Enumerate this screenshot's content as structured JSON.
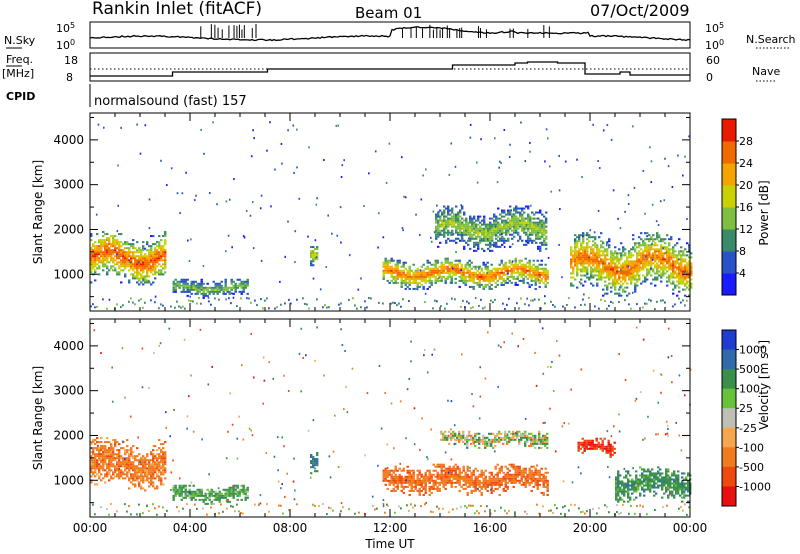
{
  "header": {
    "station": "Rankin Inlet (fitACF)",
    "beam": "Beam 01",
    "date": "07/Oct/2009"
  },
  "strip_panels": {
    "nsky": {
      "left_label": "N.Sky",
      "right_label": "N.Search",
      "left_ticks": [
        {
          "base": "10",
          "exp": "5"
        },
        {
          "base": "10",
          "exp": "0"
        }
      ],
      "right_ticks": [
        {
          "base": "10",
          "exp": "5"
        },
        {
          "base": "10",
          "exp": "0"
        }
      ]
    },
    "freq": {
      "left_label": "Freq.",
      "left_unit": "[MHz]",
      "left_ticks": [
        "18",
        "8"
      ],
      "right_label": "Nave",
      "right_ticks": [
        "60",
        "0"
      ]
    },
    "cpid": {
      "label": "CPID",
      "program": "normalsound (fast) 157"
    }
  },
  "colors": {
    "power_scale": [
      "#1a1aff",
      "#2a52c8",
      "#3b8a6a",
      "#7fbf3f",
      "#c9d200",
      "#f5a300",
      "#f06a00",
      "#e81a00"
    ],
    "velocity_scale": [
      "#1e3cd0",
      "#2f6ba8",
      "#3a8f4a",
      "#66c23a",
      "#bfbfb6",
      "#f4a74e",
      "#f07a1e",
      "#ee4a10",
      "#e81010"
    ],
    "ground_scatter": "#b8b4ac"
  },
  "chart_data": [
    {
      "type": "heatmap",
      "name": "power",
      "ylabel": "Slant Range [km]",
      "xlabel": "",
      "y_ticks": [
        "1000",
        "2000",
        "3000",
        "4000"
      ],
      "x_ticks": [
        "00:00",
        "04:00",
        "08:00",
        "12:00",
        "16:00",
        "20:00",
        "00:00"
      ],
      "ylim": [
        180,
        4600
      ],
      "xlim_hours": [
        0,
        24
      ],
      "colorbar": {
        "label": "Power [dB]",
        "ticks": [
          "4",
          "8",
          "12",
          "16",
          "20",
          "24",
          "28"
        ],
        "range": [
          0,
          32
        ]
      },
      "echo_regions": [
        {
          "t": [
            0.0,
            3.0
          ],
          "range_km": [
            750,
            1950
          ],
          "peak_db": 28
        },
        {
          "t": [
            3.3,
            6.3
          ],
          "range_km": [
            450,
            900
          ],
          "peak_db": 14
        },
        {
          "t": [
            8.8,
            9.1
          ],
          "range_km": [
            1000,
            1650
          ],
          "peak_db": 18
        },
        {
          "t": [
            11.7,
            18.3
          ],
          "range_km": [
            650,
            1350
          ],
          "peak_db": 26
        },
        {
          "t": [
            13.8,
            18.2
          ],
          "range_km": [
            1500,
            2500
          ],
          "peak_db": 16
        },
        {
          "t": [
            19.2,
            24.0
          ],
          "range_km": [
            500,
            1900
          ],
          "peak_db": 26
        }
      ]
    },
    {
      "type": "heatmap",
      "name": "velocity",
      "ylabel": "Slant Range [km]",
      "xlabel": "Time UT",
      "y_ticks": [
        "1000",
        "2000",
        "3000",
        "4000"
      ],
      "x_ticks": [
        "00:00",
        "04:00",
        "08:00",
        "12:00",
        "16:00",
        "20:00",
        "00:00"
      ],
      "ylim": [
        180,
        4600
      ],
      "xlim_hours": [
        0,
        24
      ],
      "colorbar": {
        "label": "Velocity",
        "unit_base": "[m s",
        "unit_exp": "-1",
        "unit_close": "]",
        "ticks": [
          "1000",
          "500",
          "100",
          "25",
          "-25",
          "-100",
          "-500",
          "-1000"
        ]
      },
      "echo_regions": [
        {
          "t": [
            0.0,
            3.0
          ],
          "range_km": [
            750,
            1950
          ],
          "vel_ms": -200
        },
        {
          "t": [
            3.3,
            6.3
          ],
          "range_km": [
            450,
            900
          ],
          "vel_ms": 150
        },
        {
          "t": [
            8.8,
            9.1
          ],
          "range_km": [
            1000,
            1650
          ],
          "vel_ms": 300
        },
        {
          "t": [
            11.7,
            18.3
          ],
          "range_km": [
            650,
            1350
          ],
          "vel_ms": -250
        },
        {
          "t": [
            14.0,
            18.3
          ],
          "range_km": [
            1700,
            2100
          ],
          "vel_ms": 0
        },
        {
          "t": [
            19.5,
            21.0
          ],
          "range_km": [
            1500,
            1950
          ],
          "vel_ms": -700
        },
        {
          "t": [
            21.0,
            24.0
          ],
          "range_km": [
            500,
            1300
          ],
          "vel_ms": 200
        }
      ]
    }
  ]
}
